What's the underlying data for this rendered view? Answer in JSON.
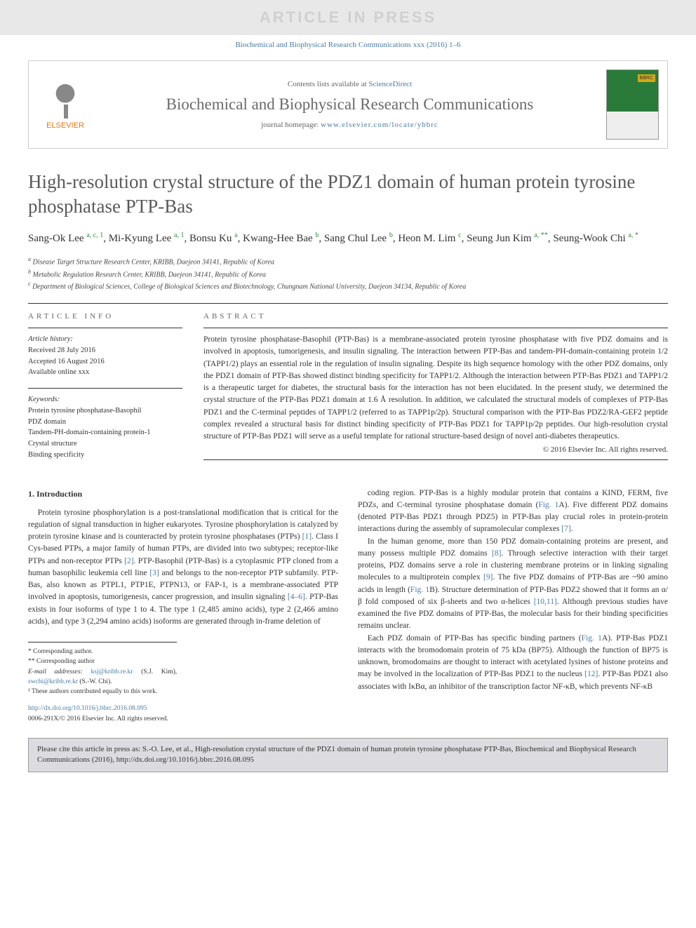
{
  "watermark": "ARTICLE IN PRESS",
  "topCitation": "Biochemical and Biophysical Research Communications xxx (2016) 1–6",
  "header": {
    "contentsPrefix": "Contents lists available at ",
    "contentsLink": "ScienceDirect",
    "journalName": "Biochemical and Biophysical Research Communications",
    "homepagePrefix": "journal homepage: ",
    "homepageUrl": "www.elsevier.com/locate/ybbrc",
    "publisherLabel": "ELSEVIER"
  },
  "title": "High-resolution crystal structure of the PDZ1 domain of human protein tyrosine phosphatase PTP-Bas",
  "authorsHtml": "Sang-Ok Lee <sup>a, c, 1</sup>, Mi-Kyung Lee <sup>a, 1</sup>, Bonsu Ku <sup>a</sup>, Kwang-Hee Bae <sup>b</sup>, Sang Chul Lee <sup>b</sup>, Heon M. Lim <sup>c</sup>, Seung Jun Kim <sup>a, **</sup>, Seung-Wook Chi <sup>a, *</sup>",
  "affiliations": [
    {
      "sup": "a",
      "text": "Disease Target Structure Research Center, KRIBB, Daejeon 34141, Republic of Korea"
    },
    {
      "sup": "b",
      "text": "Metabolic Regulation Research Center, KRIBB, Daejeon 34141, Republic of Korea"
    },
    {
      "sup": "c",
      "text": "Department of Biological Sciences, College of Biological Sciences and Biotechnology, Chungnam National University, Daejeon 34134, Republic of Korea"
    }
  ],
  "articleInfo": {
    "header": "ARTICLE INFO",
    "historyLabel": "Article history:",
    "history": [
      "Received 28 July 2016",
      "Accepted 16 August 2016",
      "Available online xxx"
    ],
    "keywordsLabel": "Keywords:",
    "keywords": [
      "Protein tyrosine phosphatase-Basophil",
      "PDZ domain",
      "Tandem-PH-domain-containing protein-1",
      "Crystal structure",
      "Binding specificity"
    ]
  },
  "abstract": {
    "header": "ABSTRACT",
    "text": "Protein tyrosine phosphatase-Basophil (PTP-Bas) is a membrane-associated protein tyrosine phosphatase with five PDZ domains and is involved in apoptosis, tumorigenesis, and insulin signaling. The interaction between PTP-Bas and tandem-PH-domain-containing protein 1/2 (TAPP1/2) plays an essential role in the regulation of insulin signaling. Despite its high sequence homology with the other PDZ domains, only the PDZ1 domain of PTP-Bas showed distinct binding specificity for TAPP1/2. Although the interaction between PTP-Bas PDZ1 and TAPP1/2 is a therapeutic target for diabetes, the structural basis for the interaction has not been elucidated. In the present study, we determined the crystal structure of the PTP-Bas PDZ1 domain at 1.6 Å resolution. In addition, we calculated the structural models of complexes of PTP-Bas PDZ1 and the C-terminal peptides of TAPP1/2 (referred to as TAPP1p/2p). Structural comparison with the PTP-Bas PDZ2/RA-GEF2 peptide complex revealed a structural basis for distinct binding specificity of PTP-Bas PDZ1 for TAPP1p/2p peptides. Our high-resolution crystal structure of PTP-Bas PDZ1 will serve as a useful template for rational structure-based design of novel anti-diabetes therapeutics.",
    "copyright": "© 2016 Elsevier Inc. All rights reserved."
  },
  "body": {
    "sectionHeading": "1. Introduction",
    "col1p1": "Protein tyrosine phosphorylation is a post-translational modification that is critical for the regulation of signal transduction in higher eukaryotes. Tyrosine phosphorylation is catalyzed by protein tyrosine kinase and is counteracted by protein tyrosine phosphatases (PTPs) [1]. Class I Cys-based PTPs, a major family of human PTPs, are divided into two subtypes; receptor-like PTPs and non-receptor PTPs [2]. PTP-Basophil (PTP-Bas) is a cytoplasmic PTP cloned from a human basophilic leukemia cell line [3] and belongs to the non-receptor PTP subfamily. PTP-Bas, also known as PTPL1, PTP1E, PTPN13, or FAP-1, is a membrane-associated PTP involved in apoptosis, tumorigenesis, cancer progression, and insulin signaling [4–6]. PTP-Bas exists in four isoforms of type 1 to 4. The type 1 (2,485 amino acids), type 2 (2,466 amino acids), and type 3 (2,294 amino acids) isoforms are generated through in-frame deletion of",
    "col2p1": "coding region. PTP-Bas is a highly modular protein that contains a KIND, FERM, five PDZs, and C-terminal tyrosine phosphatase domain (Fig. 1A). Five different PDZ domains (denoted PTP-Bas PDZ1 through PDZ5) in PTP-Bas play crucial roles in protein-protein interactions during the assembly of supramolecular complexes [7].",
    "col2p2": "In the human genome, more than 150 PDZ domain-containing proteins are present, and many possess multiple PDZ domains [8]. Through selective interaction with their target proteins, PDZ domains serve a role in clustering membrane proteins or in linking signaling molecules to a multiprotein complex [9]. The five PDZ domains of PTP-Bas are ~90 amino acids in length (Fig. 1B). Structure determination of PTP-Bas PDZ2 showed that it forms an α/β fold composed of six β-sheets and two α-helices [10,11]. Although previous studies have examined the five PDZ domains of PTP-Bas, the molecular basis for their binding specificities remains unclear.",
    "col2p3": "Each PDZ domain of PTP-Bas has specific binding partners (Fig. 1A). PTP-Bas PDZ1 interacts with the bromodomain protein of 75 kDa (BP75). Although the function of BP75 is unknown, bromodomains are thought to interact with acetylated lysines of histone proteins and may be involved in the localization of PTP-Bas PDZ1 to the nucleus [12]. PTP-Bas PDZ1 also associates with IκBα, an inhibitor of the transcription factor NF-κB, which prevents NF-κB"
  },
  "footnotes": {
    "corr1": "* Corresponding author.",
    "corr2": "** Corresponding author",
    "emailLabel": "E-mail addresses: ",
    "email1": "ksj@kribb.re.kr",
    "email1who": " (S.J. Kim), ",
    "email2": "swchi@kribb.re.kr",
    "email2who": " (S.-W. Chi).",
    "equal": "¹ These authors contributed equally to this work."
  },
  "doi": {
    "url": "http://dx.doi.org/10.1016/j.bbrc.2016.08.095",
    "copyright": "0006-291X/© 2016 Elsevier Inc. All rights reserved."
  },
  "citeBox": "Please cite this article in press as: S.-O. Lee, et al., High-resolution crystal structure of the PDZ1 domain of human protein tyrosine phosphatase PTP-Bas, Biochemical and Biophysical Research Communications (2016), http://dx.doi.org/10.1016/j.bbrc.2016.08.095",
  "colors": {
    "linkBlue": "#4a7ba6",
    "supGreen": "#2a8f3a",
    "elsevierOrange": "#e67817",
    "grayText": "#6a6a6a",
    "citeBoxBg": "#dcdce0"
  }
}
